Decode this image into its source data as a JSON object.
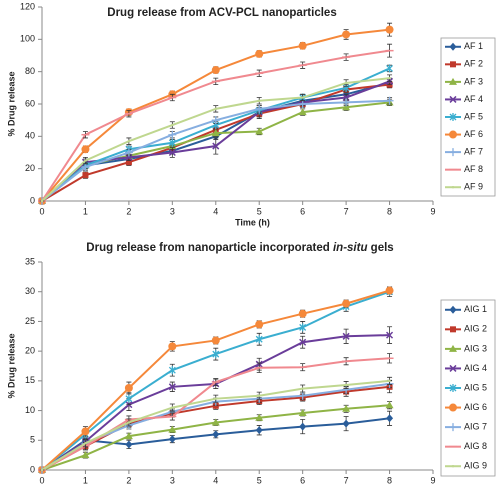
{
  "chart_data": [
    {
      "type": "line",
      "title": "Drug release from ACV-PCL nanoparticles",
      "xlabel": "Time (h)",
      "ylabel": "% Drug release",
      "x": [
        0,
        1,
        2,
        3,
        4,
        5,
        6,
        7,
        8
      ],
      "xlim": [
        0,
        9
      ],
      "xticks": [
        0,
        1,
        2,
        3,
        4,
        5,
        6,
        7,
        8,
        9
      ],
      "ylim": [
        0,
        120
      ],
      "yticks": [
        0,
        20,
        40,
        60,
        80,
        100,
        120
      ],
      "legend": "right",
      "series": [
        {
          "name": "AF 1",
          "color": "#2a5d9a",
          "marker": "diamond",
          "values": [
            0,
            22,
            26,
            31,
            40,
            55,
            62,
            66,
            73
          ],
          "errors": [
            0,
            2,
            2,
            2,
            2,
            2,
            2,
            2,
            2
          ]
        },
        {
          "name": "AF 2",
          "color": "#c0392b",
          "marker": "square",
          "values": [
            0,
            16,
            24,
            33,
            44,
            54,
            60,
            69,
            72
          ],
          "errors": [
            0,
            2,
            2,
            2,
            2,
            2,
            2,
            2,
            2
          ]
        },
        {
          "name": "AF 3",
          "color": "#8fb446",
          "marker": "triangle",
          "values": [
            0,
            22,
            28,
            34,
            42,
            43,
            55,
            58,
            61
          ],
          "errors": [
            0,
            2,
            2,
            2,
            2,
            2,
            2,
            2,
            2
          ]
        },
        {
          "name": "AF 4",
          "color": "#6a3d9a",
          "marker": "x",
          "values": [
            0,
            24,
            27,
            30,
            34,
            55,
            61,
            64,
            74
          ],
          "errors": [
            0,
            2,
            2,
            3,
            5,
            4,
            2,
            2,
            2
          ]
        },
        {
          "name": "AF 5",
          "color": "#3aaed0",
          "marker": "star",
          "values": [
            0,
            22,
            32,
            36,
            47,
            56,
            64,
            70,
            82
          ],
          "errors": [
            0,
            2,
            2,
            2,
            2,
            2,
            2,
            2,
            2
          ]
        },
        {
          "name": "AF 6",
          "color": "#f5883a",
          "marker": "circle",
          "values": [
            0,
            32,
            55,
            66,
            81,
            91,
            96,
            103,
            106
          ],
          "errors": [
            0,
            2,
            2,
            2,
            2,
            2,
            2,
            3,
            4
          ]
        },
        {
          "name": "AF 7",
          "color": "#86aee0",
          "marker": "plus",
          "values": [
            0,
            21,
            30,
            41,
            50,
            57,
            60,
            61,
            62
          ],
          "errors": [
            0,
            2,
            2,
            2,
            2,
            2,
            2,
            2,
            2
          ]
        },
        {
          "name": "AF 8",
          "color": "#f0898f",
          "marker": "dash",
          "values": [
            0,
            41,
            54,
            64,
            74,
            79,
            84,
            89,
            93
          ],
          "errors": [
            0,
            2,
            2,
            2,
            2,
            2,
            2,
            2,
            4
          ]
        },
        {
          "name": "AF 9",
          "color": "#bfd78f",
          "marker": "none",
          "values": [
            0,
            25,
            37,
            47,
            57,
            62,
            64,
            73,
            76
          ],
          "errors": [
            0,
            2,
            2,
            2,
            2,
            2,
            2,
            2,
            2
          ]
        }
      ]
    },
    {
      "type": "line",
      "title_runs": [
        "Drug release from nanoparticle incorporated ",
        "in-situ",
        " gels"
      ],
      "xlabel": "Time (h)",
      "ylabel": "% Drug release",
      "x": [
        0,
        1,
        2,
        3,
        4,
        5,
        6,
        7,
        8
      ],
      "xlim": [
        0,
        9
      ],
      "xticks": [
        0,
        1,
        2,
        3,
        4,
        5,
        6,
        7,
        8,
        9
      ],
      "ylim": [
        0,
        35
      ],
      "yticks": [
        0,
        5,
        10,
        15,
        20,
        25,
        30,
        35
      ],
      "legend": "right",
      "series": [
        {
          "name": "AIG 1",
          "color": "#2a5d9a",
          "marker": "diamond",
          "values": [
            0,
            5,
            4.3,
            5.2,
            6,
            6.7,
            7.3,
            7.8,
            8.7
          ],
          "errors": [
            0,
            0.7,
            0.7,
            0.6,
            0.6,
            0.8,
            1.2,
            1.2,
            1.2
          ]
        },
        {
          "name": "AIG 2",
          "color": "#c0392b",
          "marker": "square",
          "values": [
            0,
            4,
            7.8,
            9.5,
            10.8,
            11.6,
            12.2,
            13.2,
            14
          ],
          "errors": [
            0,
            0.6,
            0.6,
            0.6,
            0.6,
            0.6,
            0.6,
            0.8,
            1
          ]
        },
        {
          "name": "AIG 3",
          "color": "#8fb446",
          "marker": "triangle",
          "values": [
            0,
            2.5,
            5.7,
            6.8,
            8,
            8.8,
            9.6,
            10.3,
            10.9
          ],
          "errors": [
            0,
            0.5,
            0.5,
            0.5,
            0.5,
            0.5,
            0.5,
            0.6,
            0.6
          ]
        },
        {
          "name": "AIG 4",
          "color": "#6a3d9a",
          "marker": "x",
          "values": [
            0,
            4.8,
            11,
            14,
            14.5,
            17.8,
            21.5,
            22.5,
            22.7
          ],
          "errors": [
            0,
            0.6,
            1,
            0.8,
            0.8,
            1,
            1,
            1.2,
            1.4
          ]
        },
        {
          "name": "AIG 5",
          "color": "#3aaed0",
          "marker": "star",
          "values": [
            0,
            6,
            12,
            16.8,
            19.5,
            22,
            24,
            27.5,
            30
          ],
          "errors": [
            0,
            0.8,
            1,
            1,
            1,
            1,
            1,
            0.8,
            0.8
          ]
        },
        {
          "name": "AIG 6",
          "color": "#f5883a",
          "marker": "circle",
          "values": [
            0,
            6.5,
            13.8,
            20.8,
            21.8,
            24.5,
            26.3,
            28,
            30.2
          ],
          "errors": [
            0,
            0.8,
            1,
            0.8,
            0.6,
            0.6,
            0.6,
            0.6,
            0.6
          ]
        },
        {
          "name": "AIG 7",
          "color": "#86aee0",
          "marker": "plus",
          "values": [
            0,
            4.5,
            7.5,
            9.8,
            11.5,
            12,
            12.5,
            13.5,
            14.5
          ],
          "errors": [
            0,
            0.6,
            0.6,
            0.6,
            0.6,
            0.6,
            0.6,
            0.6,
            0.6
          ]
        },
        {
          "name": "AIG 8",
          "color": "#f0898f",
          "marker": "dash",
          "values": [
            0,
            4,
            8.5,
            9,
            14.8,
            17.2,
            17.3,
            18.3,
            18.8
          ],
          "errors": [
            0,
            0.6,
            0.6,
            0.6,
            0.6,
            0.8,
            0.6,
            0.6,
            0.8
          ]
        },
        {
          "name": "AIG 9",
          "color": "#bfd78f",
          "marker": "none",
          "values": [
            0,
            4.5,
            8,
            10.5,
            12,
            12.5,
            13.7,
            14.3,
            15
          ],
          "errors": [
            0,
            0.6,
            0.6,
            0.6,
            0.6,
            0.6,
            0.6,
            0.6,
            0.6
          ]
        }
      ]
    }
  ]
}
